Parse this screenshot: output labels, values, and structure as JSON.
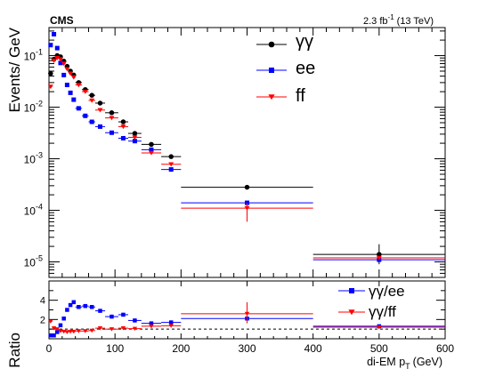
{
  "header": {
    "experiment": "CMS",
    "lumi_main": "2.3 fb",
    "lumi_sup": "-1",
    "lumi_energy": "(13 TeV)"
  },
  "colors": {
    "gg": "#000000",
    "ee": "#0000ff",
    "ff": "#ff0000",
    "frame": "#000000",
    "ref_line": "#000000"
  },
  "chart_data": [
    {
      "type": "scatter",
      "panel": "main",
      "ylabel": "Events/ GeV",
      "yscale": "log",
      "xlim": [
        0,
        600
      ],
      "ylim": [
        5e-06,
        0.35
      ],
      "y_ticks": [
        {
          "base": "10",
          "exp": "-5"
        },
        {
          "base": "10",
          "exp": "-4"
        },
        {
          "base": "10",
          "exp": "-3"
        },
        {
          "base": "10",
          "exp": "-2"
        },
        {
          "base": "10",
          "exp": "-1"
        }
      ],
      "legend": {
        "position": "top-right",
        "entries": [
          "γγ",
          "ee",
          "ff"
        ]
      },
      "series": [
        {
          "name": "γγ",
          "color": "#000000",
          "marker": "circle",
          "points": [
            {
              "x": 2.5,
              "y": 0.045,
              "xerr": 2.5
            },
            {
              "x": 7.5,
              "y": 0.085,
              "xerr": 2.5
            },
            {
              "x": 12.5,
              "y": 0.1,
              "xerr": 2.5
            },
            {
              "x": 17.5,
              "y": 0.095,
              "xerr": 2.5
            },
            {
              "x": 22.5,
              "y": 0.078,
              "xerr": 2.5
            },
            {
              "x": 27.5,
              "y": 0.062,
              "xerr": 2.5
            },
            {
              "x": 32.5,
              "y": 0.05,
              "xerr": 2.5
            },
            {
              "x": 37.5,
              "y": 0.042,
              "xerr": 2.5
            },
            {
              "x": 45,
              "y": 0.03,
              "xerr": 5
            },
            {
              "x": 55,
              "y": 0.022,
              "xerr": 5
            },
            {
              "x": 65,
              "y": 0.017,
              "xerr": 5
            },
            {
              "x": 77.5,
              "y": 0.012,
              "xerr": 7.5
            },
            {
              "x": 95,
              "y": 0.0078,
              "xerr": 10
            },
            {
              "x": 112.5,
              "y": 0.0052,
              "xerr": 7.5
            },
            {
              "x": 130,
              "y": 0.0031,
              "xerr": 10
            },
            {
              "x": 155,
              "y": 0.0019,
              "xerr": 15
            },
            {
              "x": 185,
              "y": 0.0011,
              "xerr": 15
            },
            {
              "x": 300,
              "y": 0.00028,
              "xerr": 100
            },
            {
              "x": 500,
              "y": 1.4e-05,
              "xerr": 100,
              "yerr_lo": 5e-06,
              "yerr_hi": 8e-06
            }
          ]
        },
        {
          "name": "ee",
          "color": "#0000ff",
          "marker": "square",
          "points": [
            {
              "x": 2.5,
              "y": 0.16,
              "xerr": 2.5
            },
            {
              "x": 7.5,
              "y": 0.26,
              "xerr": 2.5
            },
            {
              "x": 12.5,
              "y": 0.14,
              "xerr": 2.5
            },
            {
              "x": 17.5,
              "y": 0.072,
              "xerr": 2.5
            },
            {
              "x": 22.5,
              "y": 0.042,
              "xerr": 2.5
            },
            {
              "x": 27.5,
              "y": 0.027,
              "xerr": 2.5
            },
            {
              "x": 32.5,
              "y": 0.019,
              "xerr": 2.5
            },
            {
              "x": 37.5,
              "y": 0.014,
              "xerr": 2.5
            },
            {
              "x": 45,
              "y": 0.0095,
              "xerr": 5
            },
            {
              "x": 55,
              "y": 0.0068,
              "xerr": 5
            },
            {
              "x": 65,
              "y": 0.0052,
              "xerr": 5
            },
            {
              "x": 77.5,
              "y": 0.0042,
              "xerr": 7.5
            },
            {
              "x": 95,
              "y": 0.0032,
              "xerr": 10
            },
            {
              "x": 112.5,
              "y": 0.0025,
              "xerr": 7.5
            },
            {
              "x": 130,
              "y": 0.0022,
              "xerr": 10
            },
            {
              "x": 155,
              "y": 0.0015,
              "xerr": 15
            },
            {
              "x": 185,
              "y": 0.00062,
              "xerr": 15
            },
            {
              "x": 300,
              "y": 0.00014,
              "xerr": 100
            },
            {
              "x": 500,
              "y": 1.1e-05,
              "xerr": 100
            }
          ]
        },
        {
          "name": "ff",
          "color": "#ff0000",
          "marker": "triangle-down",
          "points": [
            {
              "x": 2.5,
              "y": 0.025,
              "xerr": 2.5
            },
            {
              "x": 7.5,
              "y": 0.08,
              "xerr": 2.5
            },
            {
              "x": 12.5,
              "y": 0.09,
              "xerr": 2.5
            },
            {
              "x": 17.5,
              "y": 0.085,
              "xerr": 2.5
            },
            {
              "x": 22.5,
              "y": 0.07,
              "xerr": 2.5
            },
            {
              "x": 27.5,
              "y": 0.055,
              "xerr": 2.5
            },
            {
              "x": 32.5,
              "y": 0.045,
              "xerr": 2.5
            },
            {
              "x": 37.5,
              "y": 0.038,
              "xerr": 2.5
            },
            {
              "x": 45,
              "y": 0.027,
              "xerr": 5
            },
            {
              "x": 55,
              "y": 0.02,
              "xerr": 5
            },
            {
              "x": 65,
              "y": 0.0135,
              "xerr": 5
            },
            {
              "x": 77.5,
              "y": 0.0088,
              "xerr": 7.5
            },
            {
              "x": 95,
              "y": 0.0062,
              "xerr": 10
            },
            {
              "x": 112.5,
              "y": 0.0042,
              "xerr": 7.5
            },
            {
              "x": 130,
              "y": 0.0026,
              "xerr": 10
            },
            {
              "x": 155,
              "y": 0.0013,
              "xerr": 15
            },
            {
              "x": 185,
              "y": 0.00078,
              "xerr": 15
            },
            {
              "x": 300,
              "y": 0.00011,
              "xerr": 100,
              "yerr_lo": 5e-05,
              "yerr_hi": 3e-05
            },
            {
              "x": 500,
              "y": 1.2e-05,
              "xerr": 100
            }
          ]
        }
      ]
    },
    {
      "type": "scatter",
      "panel": "ratio",
      "ylabel": "Ratio",
      "xlabel_main": "di-EM p",
      "xlabel_sub": "T",
      "xlabel_unit": "(GeV)",
      "xlim": [
        0,
        600
      ],
      "ylim": [
        0,
        6
      ],
      "x_ticks": [
        0,
        100,
        200,
        300,
        400,
        500,
        600
      ],
      "y_ticks": [
        2,
        4
      ],
      "reference_line": 1,
      "legend": {
        "position": "top-right",
        "entries": [
          "γγ/ee",
          "γγ/ff"
        ]
      },
      "series": [
        {
          "name": "γγ/ee",
          "color": "#0000ff",
          "marker": "square",
          "points": [
            {
              "x": 2.5,
              "y": 0.35,
              "xerr": 2.5
            },
            {
              "x": 7.5,
              "y": 0.35,
              "xerr": 2.5
            },
            {
              "x": 12.5,
              "y": 0.7,
              "xerr": 2.5
            },
            {
              "x": 17.5,
              "y": 1.4,
              "xerr": 2.5
            },
            {
              "x": 22.5,
              "y": 2.1,
              "xerr": 2.5
            },
            {
              "x": 27.5,
              "y": 3.0,
              "xerr": 2.5
            },
            {
              "x": 32.5,
              "y": 3.5,
              "xerr": 2.5
            },
            {
              "x": 37.5,
              "y": 3.8,
              "xerr": 2.5
            },
            {
              "x": 45,
              "y": 3.3,
              "xerr": 5
            },
            {
              "x": 55,
              "y": 3.4,
              "xerr": 5
            },
            {
              "x": 65,
              "y": 3.3,
              "xerr": 5
            },
            {
              "x": 77.5,
              "y": 2.9,
              "xerr": 7.5
            },
            {
              "x": 95,
              "y": 2.3,
              "xerr": 10
            },
            {
              "x": 112.5,
              "y": 2.5,
              "xerr": 7.5
            },
            {
              "x": 130,
              "y": 1.9,
              "xerr": 10
            },
            {
              "x": 155,
              "y": 1.6,
              "xerr": 15
            },
            {
              "x": 185,
              "y": 1.7,
              "xerr": 15
            },
            {
              "x": 300,
              "y": 2.1,
              "xerr": 100
            },
            {
              "x": 500,
              "y": 1.3,
              "xerr": 100
            }
          ]
        },
        {
          "name": "γγ/ff",
          "color": "#ff0000",
          "marker": "triangle-down",
          "points": [
            {
              "x": 2.5,
              "y": 1.8,
              "xerr": 2.5
            },
            {
              "x": 7.5,
              "y": 1.1,
              "xerr": 2.5
            },
            {
              "x": 12.5,
              "y": 1.0,
              "xerr": 2.5
            },
            {
              "x": 17.5,
              "y": 0.8,
              "xerr": 2.5
            },
            {
              "x": 22.5,
              "y": 0.75,
              "xerr": 2.5
            },
            {
              "x": 27.5,
              "y": 0.7,
              "xerr": 2.5
            },
            {
              "x": 32.5,
              "y": 0.75,
              "xerr": 2.5
            },
            {
              "x": 37.5,
              "y": 0.75,
              "xerr": 2.5
            },
            {
              "x": 45,
              "y": 0.8,
              "xerr": 5
            },
            {
              "x": 55,
              "y": 0.8,
              "xerr": 5
            },
            {
              "x": 65,
              "y": 0.85,
              "xerr": 5
            },
            {
              "x": 77.5,
              "y": 1.1,
              "xerr": 7.5
            },
            {
              "x": 95,
              "y": 1.0,
              "xerr": 10
            },
            {
              "x": 112.5,
              "y": 1.1,
              "xerr": 7.5
            },
            {
              "x": 130,
              "y": 1.05,
              "xerr": 10
            },
            {
              "x": 155,
              "y": 1.3,
              "xerr": 15
            },
            {
              "x": 185,
              "y": 1.35,
              "xerr": 15
            },
            {
              "x": 300,
              "y": 2.6,
              "xerr": 100,
              "yerr_lo": 1.0,
              "yerr_hi": 1.2
            },
            {
              "x": 500,
              "y": 1.2,
              "xerr": 100
            }
          ]
        }
      ]
    }
  ]
}
